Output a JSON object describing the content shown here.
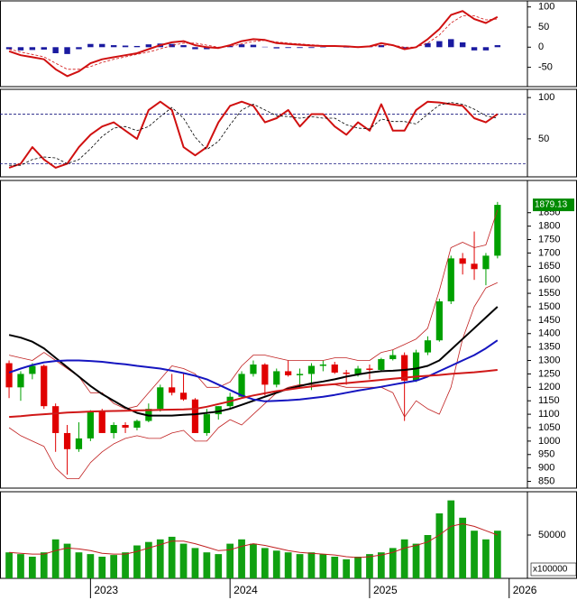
{
  "x_axis": {
    "xlim": [
      -0.78,
      44.57
    ],
    "xticks": [
      {
        "value": 7,
        "label": "2023"
      },
      {
        "value": 19,
        "label": "2024"
      },
      {
        "value": 31,
        "label": "2025"
      },
      {
        "value": 43,
        "label": "2026"
      }
    ]
  },
  "chart_data": [
    {
      "type": "macd",
      "ylim": [
        -98,
        115
      ],
      "yticks": [
        100,
        50,
        0,
        -50
      ],
      "series": [
        {
          "kind": "bar",
          "color": "#1a1aa0",
          "values": [
            -5,
            -8,
            -7,
            -6,
            -15,
            -17,
            -5,
            8,
            8,
            5,
            4,
            3,
            7,
            9,
            8,
            5,
            -5,
            -5,
            -2,
            3,
            7,
            6,
            1,
            -3,
            -2,
            -2,
            -2,
            -1,
            0,
            -1,
            -1,
            1,
            5,
            0,
            -5,
            0,
            10,
            15,
            20,
            12,
            -8,
            -8,
            5
          ]
        },
        {
          "kind": "line",
          "color": "#d01010",
          "width": 2,
          "values": [
            -10,
            -20,
            -25,
            -30,
            -55,
            -72,
            -60,
            -40,
            -30,
            -25,
            -20,
            -15,
            -5,
            5,
            12,
            15,
            5,
            0,
            -2,
            5,
            15,
            20,
            18,
            10,
            8,
            6,
            4,
            3,
            3,
            2,
            0,
            2,
            10,
            5,
            -5,
            0,
            20,
            45,
            80,
            90,
            70,
            60,
            75
          ]
        },
        {
          "kind": "line",
          "color": "#d01010",
          "width": 0.8,
          "dash": true,
          "values": [
            -5,
            -12,
            -18,
            -24,
            -40,
            -55,
            -55,
            -48,
            -38,
            -30,
            -24,
            -18,
            -12,
            -4,
            4,
            10,
            10,
            5,
            0,
            2,
            8,
            14,
            17,
            13,
            10,
            8,
            6,
            4,
            3,
            3,
            1,
            1,
            5,
            5,
            0,
            0,
            10,
            30,
            60,
            78,
            78,
            68,
            70
          ]
        }
      ]
    },
    {
      "type": "stochastic",
      "ylim": [
        4,
        110
      ],
      "yticks": [
        100,
        50
      ],
      "hlines": [
        80,
        20
      ],
      "series": [
        {
          "kind": "line",
          "color": "#d01010",
          "width": 2,
          "values": [
            15,
            20,
            40,
            25,
            15,
            20,
            40,
            55,
            65,
            70,
            60,
            50,
            85,
            95,
            85,
            40,
            30,
            40,
            70,
            90,
            95,
            90,
            70,
            75,
            85,
            65,
            80,
            80,
            65,
            55,
            70,
            60,
            92,
            60,
            60,
            85,
            95,
            94,
            92,
            90,
            75,
            70,
            80
          ]
        },
        {
          "kind": "line",
          "color": "#000000",
          "width": 0.8,
          "dash": true,
          "values": [
            18,
            18,
            25,
            28,
            27,
            20,
            25,
            38,
            53,
            63,
            65,
            60,
            65,
            77,
            88,
            75,
            52,
            37,
            47,
            67,
            85,
            92,
            85,
            78,
            77,
            75,
            77,
            75,
            75,
            67,
            63,
            62,
            74,
            71,
            71,
            68,
            80,
            91,
            94,
            92,
            86,
            78,
            75
          ]
        }
      ]
    },
    {
      "type": "candlestick",
      "ylim": [
        825,
        1970
      ],
      "yticks": [
        850,
        900,
        950,
        1000,
        1050,
        1100,
        1150,
        1200,
        1250,
        1300,
        1350,
        1400,
        1450,
        1500,
        1550,
        1600,
        1650,
        1700,
        1750,
        1800,
        1850
      ],
      "up_color": "#00a000",
      "down_color": "#e00000",
      "last_price": 1879.13,
      "last_color": "#008a00",
      "open": [
        1290,
        1200,
        1250,
        1280,
        1130,
        1030,
        970,
        1010,
        1110,
        1030,
        1060,
        1050,
        1075,
        1120,
        1200,
        1180,
        1155,
        1030,
        1100,
        1130,
        1165,
        1250,
        1285,
        1210,
        1260,
        1245,
        1250,
        1280,
        1285,
        1255,
        1250,
        1270,
        1265,
        1305,
        1320,
        1225,
        1330,
        1375,
        1520,
        1680,
        1660,
        1640,
        1690
      ],
      "high": [
        1300,
        1260,
        1290,
        1285,
        1140,
        1060,
        1070,
        1115,
        1120,
        1070,
        1070,
        1080,
        1140,
        1210,
        1250,
        1250,
        1160,
        1120,
        1130,
        1180,
        1260,
        1300,
        1290,
        1270,
        1300,
        1270,
        1290,
        1300,
        1295,
        1265,
        1280,
        1285,
        1310,
        1340,
        1330,
        1340,
        1390,
        1530,
        1690,
        1700,
        1780,
        1700,
        1890
      ],
      "low": [
        1160,
        1150,
        1230,
        1120,
        960,
        875,
        960,
        1000,
        1030,
        1010,
        1030,
        1040,
        1070,
        1110,
        1170,
        1150,
        1030,
        1020,
        1080,
        1120,
        1160,
        1240,
        1170,
        1200,
        1240,
        1200,
        1190,
        1260,
        1250,
        1210,
        1240,
        1230,
        1260,
        1300,
        1075,
        1220,
        1320,
        1370,
        1510,
        1620,
        1600,
        1580,
        1680
      ],
      "close": [
        1200,
        1250,
        1280,
        1130,
        1030,
        970,
        1010,
        1110,
        1030,
        1060,
        1050,
        1075,
        1120,
        1200,
        1180,
        1155,
        1030,
        1100,
        1130,
        1165,
        1250,
        1285,
        1210,
        1260,
        1245,
        1250,
        1280,
        1285,
        1255,
        1250,
        1270,
        1265,
        1305,
        1320,
        1225,
        1330,
        1375,
        1520,
        1680,
        1660,
        1640,
        1690,
        1879.13
      ],
      "series": [
        {
          "kind": "line",
          "color": "#c02020",
          "width": 0.8,
          "values": [
            1320,
            1310,
            1300,
            1330,
            1300,
            1270,
            1240,
            1180,
            1180,
            1140,
            1120,
            1130,
            1180,
            1230,
            1280,
            1270,
            1250,
            1200,
            1200,
            1220,
            1280,
            1320,
            1320,
            1310,
            1300,
            1300,
            1300,
            1300,
            1310,
            1310,
            1300,
            1300,
            1330,
            1340,
            1360,
            1380,
            1420,
            1560,
            1720,
            1740,
            1720,
            1730,
            1860
          ]
        },
        {
          "kind": "line",
          "color": "#c02020",
          "width": 0.8,
          "values": [
            1050,
            1020,
            1000,
            980,
            900,
            860,
            860,
            920,
            960,
            990,
            1010,
            1020,
            1010,
            1010,
            1030,
            1040,
            1000,
            1000,
            1050,
            1080,
            1060,
            1100,
            1140,
            1180,
            1200,
            1210,
            1210,
            1210,
            1210,
            1200,
            1200,
            1200,
            1200,
            1180,
            1090,
            1150,
            1120,
            1100,
            1200,
            1380,
            1500,
            1570,
            1590
          ]
        },
        {
          "kind": "line",
          "color": "#000000",
          "width": 2,
          "values": [
            1395,
            1385,
            1370,
            1345,
            1310,
            1275,
            1240,
            1205,
            1175,
            1150,
            1125,
            1105,
            1095,
            1095,
            1095,
            1098,
            1100,
            1105,
            1110,
            1120,
            1135,
            1150,
            1165,
            1180,
            1195,
            1205,
            1215,
            1222,
            1230,
            1240,
            1248,
            1255,
            1260,
            1262,
            1265,
            1270,
            1280,
            1300,
            1340,
            1380,
            1420,
            1460,
            1500
          ]
        },
        {
          "kind": "line",
          "color": "#1515c0",
          "width": 2,
          "values": [
            1255,
            1270,
            1283,
            1293,
            1298,
            1300,
            1300,
            1298,
            1295,
            1290,
            1286,
            1280,
            1275,
            1270,
            1262,
            1253,
            1243,
            1230,
            1210,
            1190,
            1170,
            1155,
            1148,
            1150,
            1152,
            1155,
            1160,
            1165,
            1172,
            1180,
            1188,
            1195,
            1202,
            1210,
            1218,
            1225,
            1240,
            1260,
            1280,
            1300,
            1320,
            1345,
            1375
          ]
        },
        {
          "kind": "line",
          "color": "#d01818",
          "width": 2,
          "values": [
            1090,
            1093,
            1097,
            1100,
            1103,
            1106,
            1108,
            1110,
            1111,
            1112,
            1113,
            1114,
            1115,
            1116,
            1117,
            1118,
            1120,
            1128,
            1138,
            1148,
            1160,
            1170,
            1178,
            1186,
            1192,
            1198,
            1203,
            1208,
            1212,
            1216,
            1220,
            1224,
            1228,
            1232,
            1236,
            1240,
            1243,
            1246,
            1250,
            1253,
            1256,
            1260,
            1265
          ]
        }
      ]
    },
    {
      "type": "volume",
      "ylim": [
        0,
        100000
      ],
      "yticks": [
        50000
      ],
      "unit_label": "x100000",
      "color": "#11a011",
      "values": [
        30000,
        28000,
        25000,
        30000,
        45000,
        40000,
        30000,
        28000,
        25000,
        27000,
        30000,
        38000,
        42000,
        45000,
        48000,
        40000,
        35000,
        30000,
        28000,
        40000,
        45000,
        40000,
        35000,
        32000,
        30000,
        28000,
        30000,
        28000,
        25000,
        22000,
        25000,
        28000,
        30000,
        35000,
        45000,
        40000,
        50000,
        75000,
        90000,
        70000,
        55000,
        45000,
        55000
      ],
      "series": [
        {
          "kind": "line",
          "color": "#c02020",
          "width": 1,
          "values": [
            30000,
            29000,
            28000,
            28000,
            32000,
            35000,
            34000,
            32000,
            29000,
            28000,
            28000,
            31000,
            35000,
            39000,
            43000,
            43000,
            40000,
            36000,
            32000,
            33000,
            37000,
            40000,
            38000,
            35000,
            32000,
            30000,
            29000,
            28000,
            27000,
            25000,
            24000,
            25000,
            27000,
            30000,
            35000,
            38000,
            42000,
            50000,
            60000,
            63000,
            60000,
            55000,
            50000
          ]
        }
      ]
    }
  ]
}
